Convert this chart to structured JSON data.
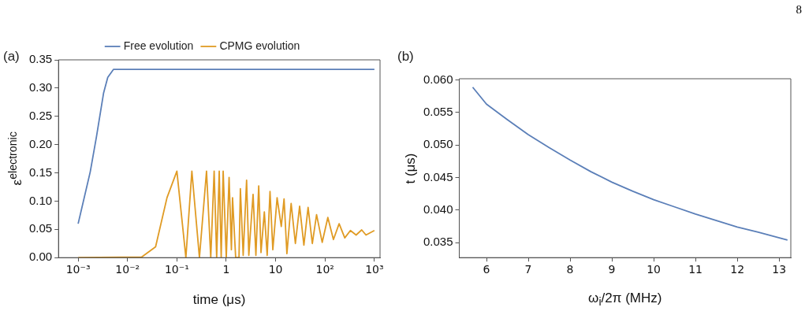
{
  "chart_data": [
    {
      "type": "line",
      "title": "(a)",
      "xlabel": "time (μs)",
      "ylabel": "ε$^{electronic}$",
      "log": "x",
      "legend": "top",
      "marker": "none",
      "xlim": [
        0.0004,
        1300
      ],
      "xticks": [
        {
          "value": 0.001,
          "label": "10⁻³"
        },
        {
          "value": 0.01,
          "label": "10⁻²"
        },
        {
          "value": 0.1,
          "label": "10⁻¹"
        },
        1,
        10,
        {
          "value": 100,
          "label": "10²"
        },
        {
          "value": 1000,
          "label": "10³"
        }
      ],
      "ylim": [
        0,
        0.35
      ],
      "yticks": [
        {
          "value": 0,
          "label": "0.00"
        },
        {
          "value": 0.05,
          "label": "0.05"
        },
        {
          "value": 0.1,
          "label": "0.10"
        },
        {
          "value": 0.15,
          "label": "0.15"
        },
        {
          "value": 0.2,
          "label": "0.20"
        },
        {
          "value": 0.25,
          "label": "0.25"
        },
        {
          "value": 0.3,
          "label": "0.30"
        },
        {
          "value": 0.35,
          "label": "0.35"
        }
      ],
      "series": [
        {
          "name": "Free evolution",
          "color": "#5b7fb8",
          "x": [
            0.001,
            0.00176,
            0.00235,
            0.00327,
            0.00398,
            0.00518,
            0.01,
            0.1,
            1,
            10,
            100,
            1000
          ],
          "values": [
            0.06,
            0.152,
            0.214,
            0.291,
            0.319,
            0.333,
            0.333,
            0.333,
            0.333,
            0.333,
            0.333,
            0.333
          ]
        },
        {
          "name": "CPMG evolution",
          "color": "#e09b24",
          "x": [
            0.001,
            0.0193,
            0.037,
            0.063,
            0.1,
            0.152,
            0.201,
            0.286,
            0.398,
            0.485,
            0.568,
            0.639,
            0.72,
            0.789,
            0.865,
            1.0,
            1.14,
            1.27,
            1.34,
            1.55,
            1.81,
            1.93,
            2.2,
            2.58,
            2.86,
            3.49,
            3.98,
            4.54,
            5.05,
            5.9,
            6.74,
            7.69,
            8.77,
            10.7,
            13.0,
            14.8,
            16.9,
            20.6,
            25.1,
            30.6,
            37.3,
            45.4,
            55.3,
            67.4,
            87.7,
            114,
            148,
            193,
            251,
            327,
            426,
            553,
            675,
            1000
          ],
          "values": [
            0,
            0.001,
            0.019,
            0.106,
            0.153,
            0,
            0.153,
            0,
            0.153,
            0,
            0.153,
            0,
            0.153,
            0,
            0.153,
            0,
            0.142,
            0.014,
            0.106,
            0,
            0,
            0.122,
            0.004,
            0.137,
            0.004,
            0.112,
            0.004,
            0.127,
            0.009,
            0.081,
            0.004,
            0.117,
            0.014,
            0.106,
            0.055,
            0.104,
            0.007,
            0.096,
            0.025,
            0.091,
            0.022,
            0.089,
            0.025,
            0.076,
            0.027,
            0.071,
            0.032,
            0.06,
            0.035,
            0.048,
            0.04,
            0.049,
            0.04,
            0.048
          ]
        }
      ]
    },
    {
      "type": "line",
      "title": "(b)",
      "xlabel": "ω$_{i}$/2π (MHz)",
      "ylabel": "t (μs)",
      "marker": "none",
      "annotations": [
        "8"
      ],
      "xlim": [
        5.35,
        13.28
      ],
      "xticks": [
        6,
        7,
        8,
        9,
        10,
        11,
        12,
        13
      ],
      "ylim": [
        0.0327,
        0.0602
      ],
      "yticks": [
        {
          "value": 0.035,
          "label": "0.035"
        },
        {
          "value": 0.04,
          "label": "0.040"
        },
        {
          "value": 0.045,
          "label": "0.045"
        },
        {
          "value": 0.05,
          "label": "0.050"
        },
        {
          "value": 0.055,
          "label": "0.055"
        },
        {
          "value": 0.06,
          "label": "0.060"
        }
      ],
      "series": [
        {
          "color": "#5b7fb8",
          "x": [
            5.67,
            6,
            6.5,
            7,
            7.5,
            8,
            8.5,
            9,
            9.5,
            10,
            10.5,
            11,
            11.5,
            12,
            12.5,
            13.2
          ],
          "values": [
            0.0589,
            0.0563,
            0.0539,
            0.0516,
            0.0496,
            0.0477,
            0.0459,
            0.0443,
            0.0429,
            0.0416,
            0.0405,
            0.0394,
            0.0384,
            0.0374,
            0.0366,
            0.0354
          ]
        }
      ]
    }
  ]
}
